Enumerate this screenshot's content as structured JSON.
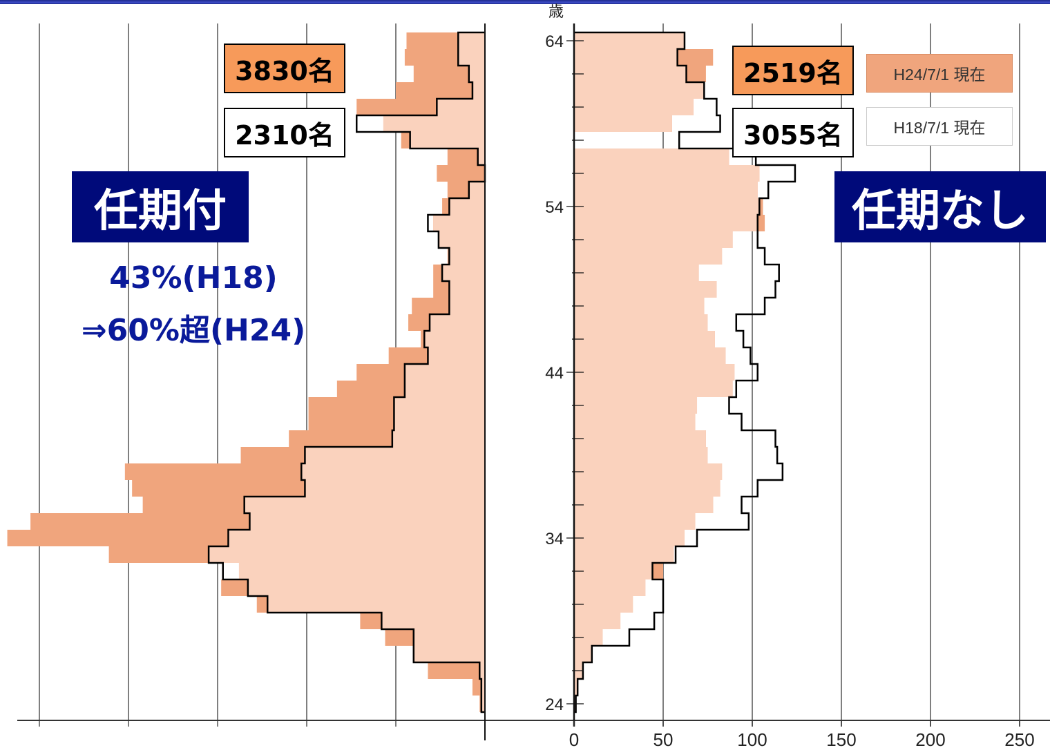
{
  "chart_data": [
    {
      "type": "bar",
      "orientation": "horizontal",
      "title": "任期付",
      "x_direction": "reversed",
      "y_axis": {
        "label": "歳",
        "ticks": [
          24,
          34,
          44,
          54,
          64
        ],
        "range": [
          23,
          65
        ]
      },
      "categories_age": [
        24,
        25,
        26,
        27,
        28,
        29,
        30,
        31,
        32,
        33,
        34,
        35,
        36,
        37,
        38,
        39,
        40,
        41,
        42,
        43,
        44,
        45,
        46,
        47,
        48,
        49,
        50,
        51,
        52,
        53,
        54,
        55,
        56,
        57,
        58,
        59,
        60,
        61,
        62,
        63,
        64
      ],
      "series": [
        {
          "name": "H24/7/1 現在",
          "total": "3830名",
          "color": "#f0a57d",
          "values": [
            3,
            7,
            32,
            40,
            56,
            70,
            128,
            148,
            138,
            211,
            268,
            255,
            192,
            198,
            202,
            137,
            110,
            99,
            99,
            83,
            72,
            54,
            36,
            43,
            41,
            29,
            29,
            21,
            26,
            29,
            24,
            21,
            27,
            21,
            47,
            57,
            72,
            50,
            40,
            45,
            44
          ]
        },
        {
          "name": "H18/7/1 現在",
          "total": "2310名",
          "color": "#ffffff",
          "values": [
            2,
            2,
            3,
            40,
            40,
            58,
            122,
            133,
            147,
            155,
            144,
            132,
            135,
            101,
            103,
            101,
            52,
            51,
            51,
            45,
            45,
            32,
            34,
            31,
            20,
            20,
            24,
            20,
            26,
            32,
            20,
            9,
            0,
            4,
            42,
            72,
            27,
            7,
            9,
            15,
            15
          ]
        }
      ]
    },
    {
      "type": "bar",
      "orientation": "horizontal",
      "title": "任期なし",
      "y_axis": {
        "label": "歳",
        "ticks": [
          24,
          34,
          44,
          54,
          64
        ],
        "range": [
          23,
          65
        ]
      },
      "x_axis": {
        "ticks": [
          0,
          50,
          100,
          150,
          200,
          250
        ],
        "range": [
          0,
          263
        ]
      },
      "categories_age": [
        24,
        25,
        26,
        27,
        28,
        29,
        30,
        31,
        32,
        33,
        34,
        35,
        36,
        37,
        38,
        39,
        40,
        41,
        42,
        43,
        44,
        45,
        46,
        47,
        48,
        49,
        50,
        51,
        52,
        53,
        54,
        55,
        56,
        57,
        58,
        59,
        60,
        61,
        62,
        63,
        64
      ],
      "series": [
        {
          "name": "H24/7/1 現在",
          "total": "2519名",
          "color": "#f0a57d",
          "values": [
            1,
            2,
            5,
            10,
            16,
            26,
            33,
            40,
            50,
            56,
            62,
            68,
            78,
            82,
            83,
            75,
            74,
            68,
            69,
            89,
            90,
            85,
            79,
            75,
            73,
            80,
            70,
            83,
            89,
            107,
            106,
            103,
            104,
            87,
            0,
            55,
            67,
            73,
            74,
            78,
            62
          ]
        },
        {
          "name": "H18/7/1 現在",
          "total": "3055名",
          "color": "#ffffff",
          "values": [
            1,
            2,
            5,
            10,
            31,
            45,
            50,
            50,
            44,
            57,
            69,
            98,
            94,
            103,
            117,
            114,
            113,
            94,
            87,
            91,
            103,
            99,
            95,
            91,
            107,
            113,
            115,
            107,
            103,
            103,
            104,
            109,
            124,
            102,
            59,
            82,
            80,
            73,
            63,
            58,
            62
          ]
        }
      ]
    }
  ],
  "labels": {
    "left_current_total": "3830名",
    "left_past_total": "2310名",
    "right_current_total": "2519名",
    "right_past_total": "3055名",
    "legend_current": "H24/7/1 現在",
    "legend_past": "H18/7/1 現在",
    "left_title": "任期付",
    "right_title": "任期なし",
    "note_line1": "43%(H18)",
    "note_line2": "⇒60%超(H24)",
    "age_unit": "歳"
  }
}
